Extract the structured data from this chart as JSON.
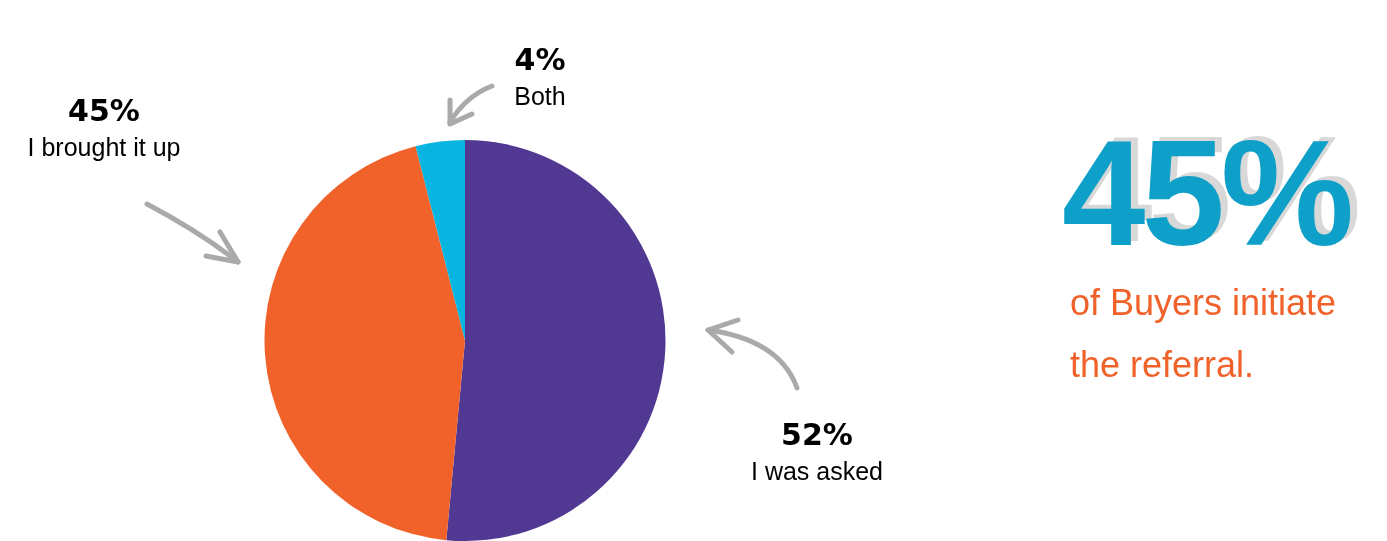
{
  "chart_data": {
    "type": "pie",
    "categories": [
      "I was asked",
      "I brought it up",
      "Both"
    ],
    "values": [
      52,
      45,
      4
    ],
    "value_labels": [
      "52%",
      "45%",
      "4%"
    ],
    "colors": [
      "#513893",
      "#f06229",
      "#08b4e0"
    ],
    "legend": false,
    "annotations": [
      "45%",
      "of Buyers initiate the referral."
    ]
  }
}
